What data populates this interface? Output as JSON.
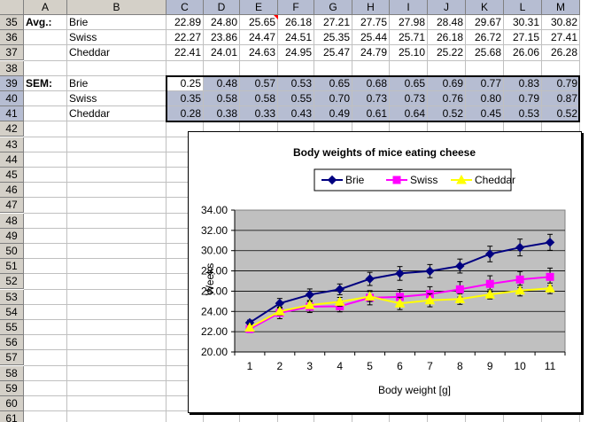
{
  "columns": [
    "A",
    "B",
    "C",
    "D",
    "E",
    "F",
    "G",
    "H",
    "I",
    "J",
    "K",
    "L",
    "M"
  ],
  "rows": [
    {
      "num": "35",
      "a": "Avg.:",
      "b": "Brie",
      "vals": [
        "22.89",
        "24.80",
        "25.65",
        "26.18",
        "27.21",
        "27.75",
        "27.98",
        "28.48",
        "29.67",
        "30.31",
        "30.82"
      ]
    },
    {
      "num": "36",
      "a": "",
      "b": "Swiss",
      "vals": [
        "22.27",
        "23.86",
        "24.47",
        "24.51",
        "25.35",
        "25.44",
        "25.71",
        "26.18",
        "26.72",
        "27.15",
        "27.41"
      ]
    },
    {
      "num": "37",
      "a": "",
      "b": "Cheddar",
      "vals": [
        "22.41",
        "24.01",
        "24.63",
        "24.95",
        "25.47",
        "24.79",
        "25.10",
        "25.22",
        "25.68",
        "26.06",
        "26.28"
      ]
    },
    {
      "num": "38",
      "a": "",
      "b": "",
      "vals": [
        "",
        "",
        "",
        "",
        "",
        "",
        "",
        "",
        "",
        "",
        ""
      ]
    },
    {
      "num": "39",
      "a": "SEM:",
      "b": "Brie",
      "vals": [
        "0.25",
        "0.48",
        "0.57",
        "0.53",
        "0.65",
        "0.68",
        "0.65",
        "0.69",
        "0.77",
        "0.83",
        "0.79"
      ]
    },
    {
      "num": "40",
      "a": "",
      "b": "Swiss",
      "vals": [
        "0.35",
        "0.58",
        "0.58",
        "0.55",
        "0.70",
        "0.73",
        "0.73",
        "0.76",
        "0.80",
        "0.79",
        "0.87"
      ]
    },
    {
      "num": "41",
      "a": "",
      "b": "Cheddar",
      "vals": [
        "0.28",
        "0.38",
        "0.33",
        "0.43",
        "0.49",
        "0.61",
        "0.64",
        "0.52",
        "0.45",
        "0.53",
        "0.52"
      ]
    }
  ],
  "empty_rows": [
    "42",
    "43",
    "44",
    "45",
    "46",
    "47",
    "48",
    "49",
    "50",
    "51",
    "52",
    "53",
    "54",
    "55",
    "56",
    "57",
    "58",
    "59",
    "60",
    "61"
  ],
  "chart_data": {
    "type": "line",
    "title": "Body weights of mice eating cheese",
    "xlabel": "Body weight [g]",
    "ylabel": "Weeks",
    "categories": [
      "1",
      "2",
      "3",
      "4",
      "5",
      "6",
      "7",
      "8",
      "9",
      "10",
      "11"
    ],
    "ylim": [
      20,
      34
    ],
    "yticks": [
      "20.00",
      "22.00",
      "24.00",
      "26.00",
      "28.00",
      "30.00",
      "32.00",
      "34.00"
    ],
    "plot_bg": "#c0c0c0",
    "legend_position": "top",
    "series": [
      {
        "name": "Brie",
        "color": "#000080",
        "marker": "diamond",
        "values": [
          22.89,
          24.8,
          25.65,
          26.18,
          27.21,
          27.75,
          27.98,
          28.48,
          29.67,
          30.31,
          30.82
        ],
        "errors": [
          0.25,
          0.48,
          0.57,
          0.53,
          0.65,
          0.68,
          0.65,
          0.69,
          0.77,
          0.83,
          0.79
        ]
      },
      {
        "name": "Swiss",
        "color": "#ff00ff",
        "marker": "square",
        "values": [
          22.27,
          23.86,
          24.47,
          24.51,
          25.35,
          25.44,
          25.71,
          26.18,
          26.72,
          27.15,
          27.41
        ],
        "errors": [
          0.35,
          0.58,
          0.58,
          0.55,
          0.7,
          0.73,
          0.73,
          0.76,
          0.8,
          0.79,
          0.87
        ]
      },
      {
        "name": "Cheddar",
        "color": "#ffff00",
        "marker": "triangle",
        "values": [
          22.41,
          24.01,
          24.63,
          24.95,
          25.47,
          24.79,
          25.1,
          25.22,
          25.68,
          26.06,
          26.28
        ],
        "errors": [
          0.28,
          0.38,
          0.33,
          0.43,
          0.49,
          0.61,
          0.64,
          0.52,
          0.45,
          0.53,
          0.52
        ]
      }
    ]
  }
}
